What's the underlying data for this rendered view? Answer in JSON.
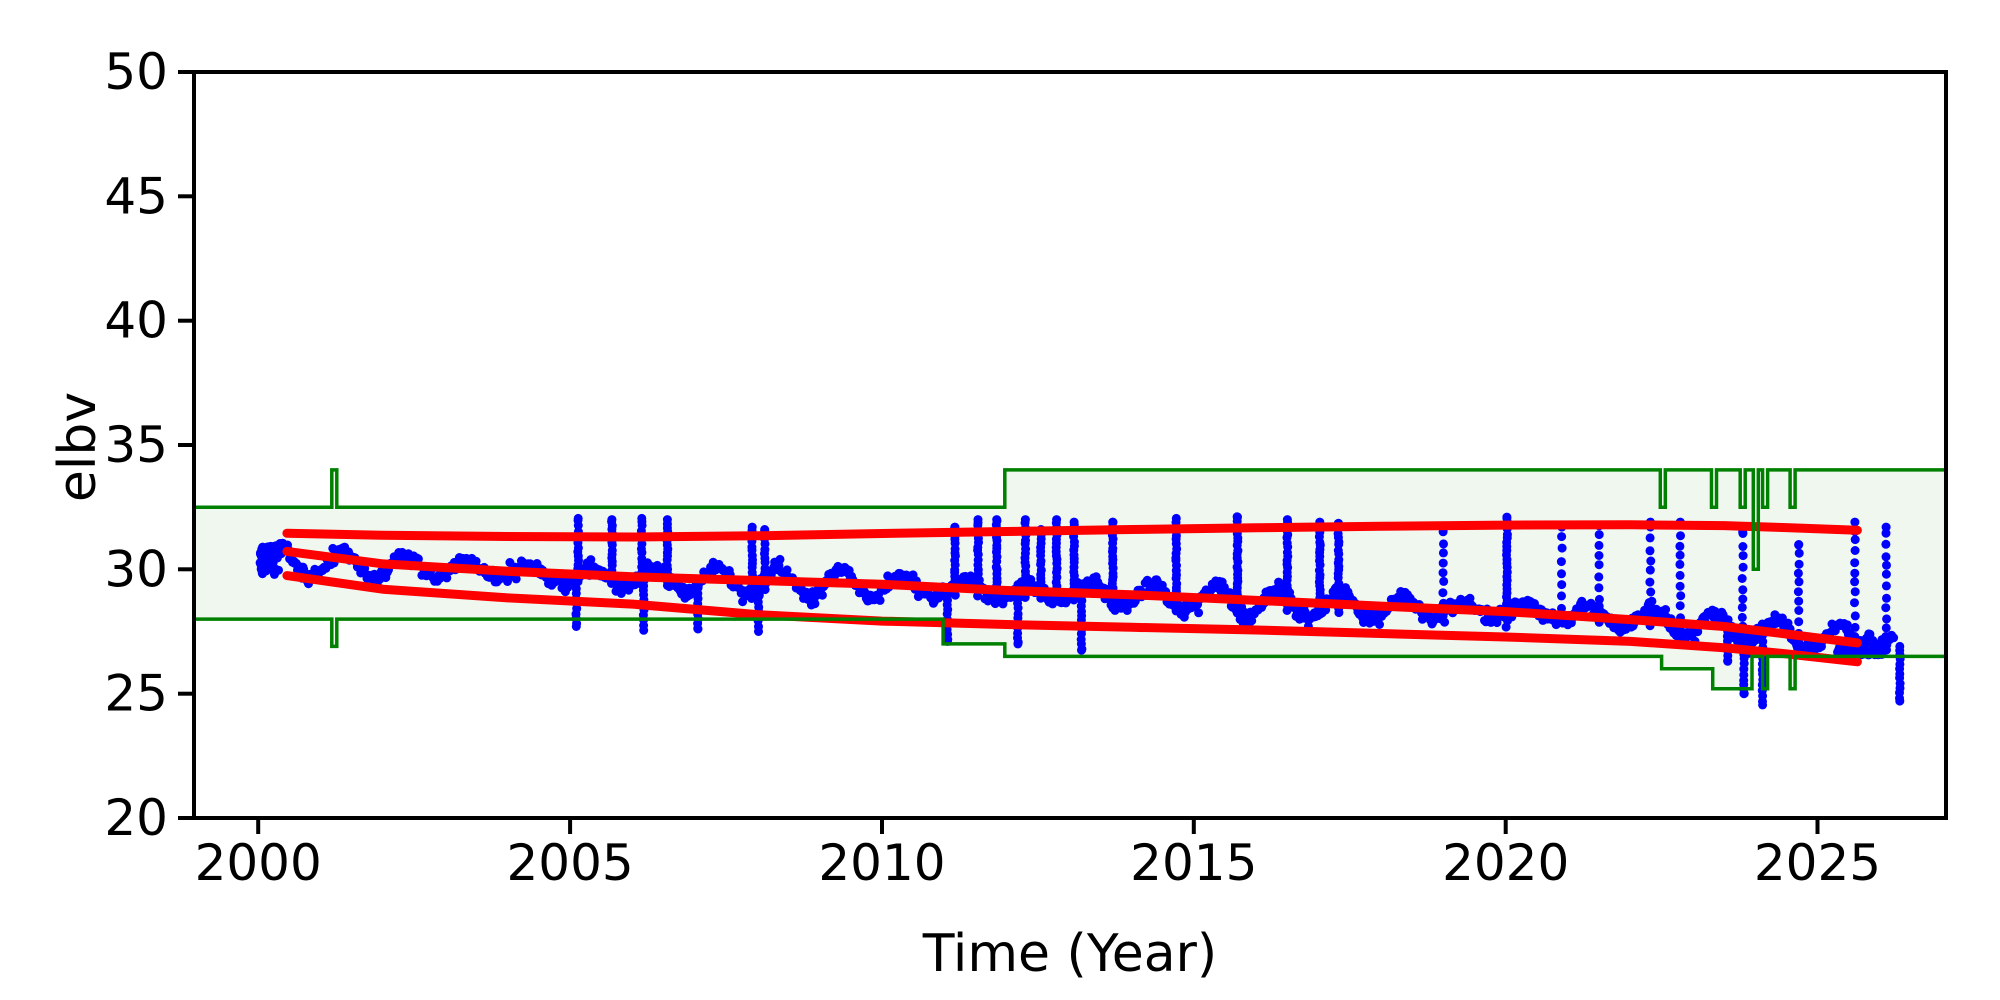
{
  "chart_data": {
    "type": "scatter",
    "title": "",
    "xlabel": "Time (Year)",
    "ylabel": "elbv",
    "xlim": [
      1998.97,
      2027.06
    ],
    "ylim": [
      20,
      50
    ],
    "xticks": [
      2000,
      2005,
      2010,
      2015,
      2020,
      2025
    ],
    "xtick_labels": [
      "2000",
      "2005",
      "2010",
      "2015",
      "2020",
      "2025"
    ],
    "yticks": [
      20,
      25,
      30,
      35,
      40,
      45,
      50
    ],
    "ytick_labels": [
      "20",
      "25",
      "30",
      "35",
      "40",
      "45",
      "50"
    ],
    "grid": false,
    "legend_position": "none",
    "colors": {
      "points": "#0000ff",
      "trend": "#ff0000",
      "envelope_line": "#008000",
      "envelope_fill": "#eff7ef",
      "axis": "#000000",
      "background": "#ffffff"
    },
    "envelope": {
      "line_width": 3.5,
      "upper_steps": [
        [
          1999.0,
          32.5
        ],
        [
          2001.18,
          32.5
        ],
        [
          2001.18,
          34.0
        ],
        [
          2001.26,
          34.0
        ],
        [
          2001.26,
          32.5
        ],
        [
          2011.97,
          32.5
        ],
        [
          2011.97,
          34.0
        ],
        [
          2022.48,
          34.0
        ],
        [
          2022.48,
          32.5
        ],
        [
          2022.56,
          32.5
        ],
        [
          2022.56,
          34.0
        ],
        [
          2023.3,
          34.0
        ],
        [
          2023.3,
          32.5
        ],
        [
          2023.38,
          32.5
        ],
        [
          2023.38,
          34.0
        ],
        [
          2023.76,
          34.0
        ],
        [
          2023.76,
          32.5
        ],
        [
          2023.84,
          32.5
        ],
        [
          2023.84,
          34.0
        ],
        [
          2023.97,
          34.0
        ],
        [
          2023.97,
          30.0
        ],
        [
          2024.05,
          30.0
        ],
        [
          2024.05,
          34.0
        ],
        [
          2024.12,
          34.0
        ],
        [
          2024.12,
          32.5
        ],
        [
          2024.2,
          32.5
        ],
        [
          2024.2,
          34.0
        ],
        [
          2024.56,
          34.0
        ],
        [
          2024.56,
          32.5
        ],
        [
          2024.64,
          32.5
        ],
        [
          2024.64,
          34.0
        ],
        [
          2027.06,
          34.0
        ]
      ],
      "lower_steps": [
        [
          1999.0,
          28.0
        ],
        [
          2001.18,
          28.0
        ],
        [
          2001.18,
          26.9
        ],
        [
          2001.26,
          26.9
        ],
        [
          2001.26,
          28.0
        ],
        [
          2010.98,
          28.0
        ],
        [
          2010.98,
          27.0
        ],
        [
          2011.97,
          27.0
        ],
        [
          2011.97,
          26.5
        ],
        [
          2022.5,
          26.5
        ],
        [
          2022.5,
          26.0
        ],
        [
          2023.32,
          26.0
        ],
        [
          2023.32,
          25.2
        ],
        [
          2023.95,
          25.2
        ],
        [
          2023.95,
          26.5
        ],
        [
          2024.12,
          26.5
        ],
        [
          2024.12,
          25.2
        ],
        [
          2024.2,
          25.2
        ],
        [
          2024.2,
          26.5
        ],
        [
          2024.56,
          26.5
        ],
        [
          2024.56,
          25.2
        ],
        [
          2024.64,
          25.2
        ],
        [
          2024.64,
          26.5
        ],
        [
          2027.06,
          26.5
        ]
      ]
    },
    "trend_lines": {
      "line_width": 9,
      "upper": [
        [
          2000.46,
          31.45
        ],
        [
          2002,
          31.37
        ],
        [
          2004,
          31.32
        ],
        [
          2006,
          31.3
        ],
        [
          2008,
          31.35
        ],
        [
          2010,
          31.44
        ],
        [
          2012,
          31.52
        ],
        [
          2014,
          31.6
        ],
        [
          2016,
          31.67
        ],
        [
          2018,
          31.73
        ],
        [
          2020,
          31.78
        ],
        [
          2022,
          31.79
        ],
        [
          2023.5,
          31.76
        ],
        [
          2024.5,
          31.68
        ],
        [
          2025.64,
          31.57
        ]
      ],
      "mean": [
        [
          2000.46,
          30.72
        ],
        [
          2002,
          30.22
        ],
        [
          2004,
          29.92
        ],
        [
          2006,
          29.7
        ],
        [
          2008,
          29.55
        ],
        [
          2010,
          29.4
        ],
        [
          2012,
          29.15
        ],
        [
          2014,
          28.98
        ],
        [
          2016,
          28.75
        ],
        [
          2018,
          28.52
        ],
        [
          2020,
          28.3
        ],
        [
          2022,
          27.98
        ],
        [
          2023.5,
          27.7
        ],
        [
          2024.5,
          27.4
        ],
        [
          2025.64,
          27.04
        ]
      ],
      "lower": [
        [
          2000.46,
          29.75
        ],
        [
          2002,
          29.2
        ],
        [
          2004,
          28.85
        ],
        [
          2006,
          28.6
        ],
        [
          2008,
          28.18
        ],
        [
          2010,
          27.92
        ],
        [
          2012,
          27.78
        ],
        [
          2014,
          27.67
        ],
        [
          2016,
          27.56
        ],
        [
          2018,
          27.42
        ],
        [
          2020,
          27.28
        ],
        [
          2022,
          27.1
        ],
        [
          2023.5,
          26.85
        ],
        [
          2024.5,
          26.6
        ],
        [
          2025.64,
          26.28
        ]
      ]
    },
    "scatter": {
      "point_radius": 4.5,
      "t_start": 2000.03,
      "t_end": 2026.22,
      "noise_sd": 0.15,
      "seasonal_amplitude_range": [
        0.3,
        0.6
      ],
      "trend_anchors": [
        [
          2000.0,
          30.35
        ],
        [
          2001,
          30.25
        ],
        [
          2002,
          30.15
        ],
        [
          2003,
          30.05
        ],
        [
          2004,
          29.9
        ],
        [
          2005,
          29.75
        ],
        [
          2006,
          29.65
        ],
        [
          2007,
          29.55
        ],
        [
          2008,
          29.45
        ],
        [
          2009,
          29.4
        ],
        [
          2010,
          29.35
        ],
        [
          2011,
          29.25
        ],
        [
          2012,
          29.15
        ],
        [
          2013,
          29.05
        ],
        [
          2014,
          28.95
        ],
        [
          2015,
          28.8
        ],
        [
          2016,
          28.65
        ],
        [
          2017,
          28.55
        ],
        [
          2018,
          28.5
        ],
        [
          2019,
          28.4
        ],
        [
          2020,
          28.35
        ],
        [
          2021,
          28.2
        ],
        [
          2022,
          28.05
        ],
        [
          2023,
          27.8
        ],
        [
          2024,
          27.45
        ],
        [
          2025,
          27.25
        ],
        [
          2026.25,
          27.0
        ]
      ],
      "spikes_up": [
        {
          "t": 2005.13,
          "top": 32.05
        },
        {
          "t": 2005.67,
          "top": 32.0
        },
        {
          "t": 2006.15,
          "top": 32.05
        },
        {
          "t": 2006.56,
          "top": 32.0
        },
        {
          "t": 2007.92,
          "top": 31.7
        },
        {
          "t": 2008.12,
          "top": 31.6
        },
        {
          "t": 2011.17,
          "top": 31.7
        },
        {
          "t": 2011.54,
          "top": 32.0
        },
        {
          "t": 2011.84,
          "top": 32.0
        },
        {
          "t": 2012.3,
          "top": 32.0
        },
        {
          "t": 2012.55,
          "top": 31.6
        },
        {
          "t": 2012.8,
          "top": 32.0
        },
        {
          "t": 2013.08,
          "top": 31.9
        },
        {
          "t": 2013.7,
          "top": 31.9
        },
        {
          "t": 2014.72,
          "top": 32.05
        },
        {
          "t": 2015.7,
          "top": 32.1
        },
        {
          "t": 2016.5,
          "top": 32.0
        },
        {
          "t": 2017.02,
          "top": 31.9
        },
        {
          "t": 2017.32,
          "top": 31.85
        },
        {
          "t": 2019.0,
          "top": 31.6,
          "dotted": true
        },
        {
          "t": 2020.02,
          "top": 32.1
        },
        {
          "t": 2020.9,
          "top": 31.7,
          "dotted": true
        },
        {
          "t": 2021.5,
          "top": 31.75,
          "dotted": true
        },
        {
          "t": 2022.32,
          "top": 31.9,
          "dotted": true
        },
        {
          "t": 2022.8,
          "top": 31.9,
          "dotted": true
        },
        {
          "t": 2023.8,
          "top": 31.5,
          "dotted": true
        },
        {
          "t": 2024.7,
          "top": 31.0,
          "dotted": true
        },
        {
          "t": 2025.6,
          "top": 31.9,
          "dotted": true
        },
        {
          "t": 2026.1,
          "top": 31.7,
          "dotted": true
        }
      ],
      "spikes_down": [
        {
          "t": 2005.1,
          "bottom": 27.7
        },
        {
          "t": 2006.18,
          "bottom": 27.55
        },
        {
          "t": 2007.05,
          "bottom": 27.6
        },
        {
          "t": 2008.02,
          "bottom": 27.5
        },
        {
          "t": 2011.05,
          "bottom": 27.1
        },
        {
          "t": 2012.18,
          "bottom": 27.0
        },
        {
          "t": 2013.2,
          "bottom": 26.75
        },
        {
          "t": 2023.56,
          "bottom": 26.3
        },
        {
          "t": 2023.82,
          "bottom": 25.0
        },
        {
          "t": 2024.12,
          "bottom": 24.55
        },
        {
          "t": 2026.32,
          "bottom": 24.7
        }
      ],
      "start_cluster": {
        "t_min": 2000.03,
        "t_max": 2000.33,
        "center": 30.45,
        "sd": 0.3,
        "n": 55,
        "v_min": 29.65,
        "v_max": 31.05
      },
      "end_cluster": {
        "t_min": 2025.32,
        "t_max": 2026.05,
        "base": 26.56,
        "spread": 0.33,
        "n": 150,
        "v_max": 27.85
      }
    }
  }
}
